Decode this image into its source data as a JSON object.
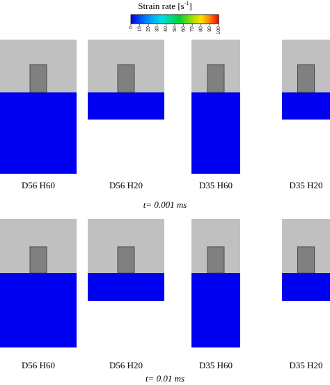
{
  "colorbar": {
    "title": "Strain rate [s",
    "title_superscript": "-1",
    "title_end": "]",
    "lim": [
      0,
      100
    ],
    "ticks": [
      0,
      10,
      20,
      30,
      40,
      50,
      60,
      70,
      80,
      90,
      100
    ]
  },
  "rows": [
    {
      "time": "t= 0.001 ms",
      "panels": [
        {
          "label": "D56 H60"
        },
        {
          "label": "D56 H20"
        },
        {
          "label": "D35 H60"
        },
        {
          "label": "D35 H20"
        }
      ]
    },
    {
      "time": "t= 0.01 ms",
      "panels": [
        {
          "label": "D56 H60"
        },
        {
          "label": "D56 H20"
        },
        {
          "label": "D35 H60"
        },
        {
          "label": "D35 H20"
        }
      ]
    }
  ]
}
